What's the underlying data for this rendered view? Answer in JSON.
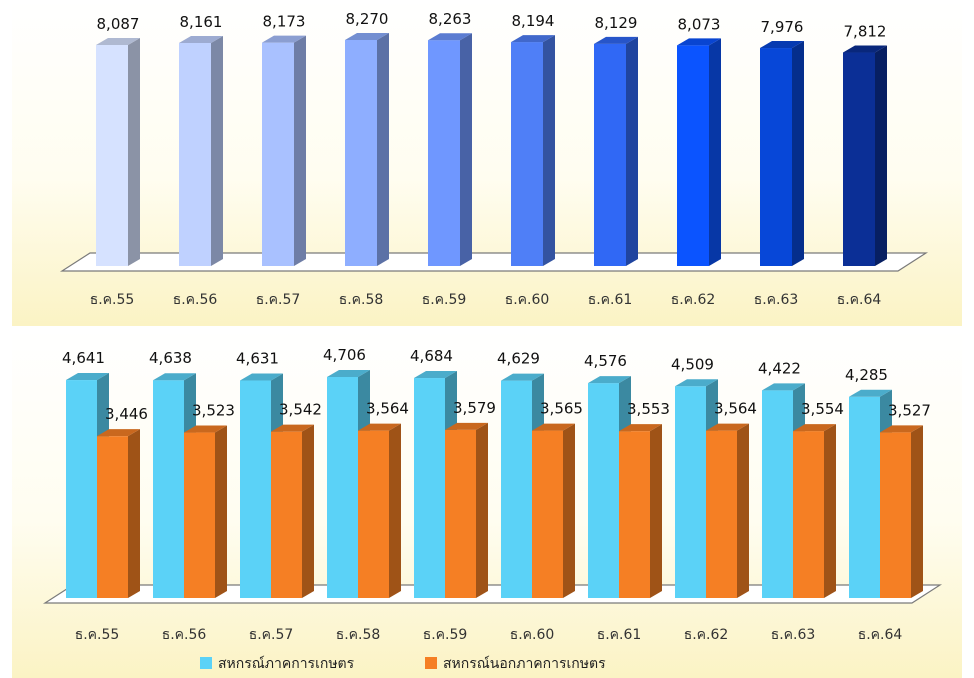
{
  "chart_data": [
    {
      "type": "bar",
      "categories": [
        "ธ.ค.55",
        "ธ.ค.56",
        "ธ.ค.57",
        "ธ.ค.58",
        "ธ.ค.59",
        "ธ.ค.60",
        "ธ.ค.61",
        "ธ.ค.62",
        "ธ.ค.63",
        "ธ.ค.64"
      ],
      "values": [
        8087,
        8161,
        8173,
        8270,
        8263,
        8194,
        8129,
        8073,
        7976,
        7812
      ],
      "value_labels": [
        "8,087",
        "8,161",
        "8,173",
        "8,270",
        "8,263",
        "8,194",
        "8,129",
        "8,073",
        "7,976",
        "7,812"
      ],
      "colors": [
        "#d6e2ff",
        "#bfd1ff",
        "#a9c1ff",
        "#8eaeff",
        "#6f97ff",
        "#4f7ff7",
        "#3068f5",
        "#0b54ff",
        "#0747d8",
        "#0b2f96"
      ],
      "title": "",
      "xlabel": "",
      "ylabel": "",
      "ylim": [
        0,
        8270
      ],
      "grid": false,
      "style": "3d-column",
      "background": "#fdf8d8"
    },
    {
      "type": "bar",
      "categories": [
        "ธ.ค.55",
        "ธ.ค.56",
        "ธ.ค.57",
        "ธ.ค.58",
        "ธ.ค.59",
        "ธ.ค.60",
        "ธ.ค.61",
        "ธ.ค.62",
        "ธ.ค.63",
        "ธ.ค.64"
      ],
      "series": [
        {
          "name": "สหกรณ์ภาคการเกษตร",
          "color": "#5bd2f7",
          "values": [
            4641,
            4638,
            4631,
            4706,
            4684,
            4629,
            4576,
            4509,
            4422,
            4285
          ],
          "value_labels": [
            "4,641",
            "4,638",
            "4,631",
            "4,706",
            "4,684",
            "4,629",
            "4,576",
            "4,509",
            "4,422",
            "4,285"
          ]
        },
        {
          "name": "สหกรณ์นอกภาคการเกษตร",
          "color": "#f57f24",
          "values": [
            3446,
            3523,
            3542,
            3564,
            3579,
            3565,
            3553,
            3564,
            3554,
            3527
          ],
          "value_labels": [
            "3,446",
            "3,523",
            "3,542",
            "3,564",
            "3,579",
            "3,565",
            "3,553",
            "3,564",
            "3,554",
            "3,527"
          ]
        }
      ],
      "title": "",
      "xlabel": "",
      "ylabel": "",
      "ylim": [
        0,
        4706
      ],
      "grid": false,
      "style": "3d-column",
      "legend": "bottom",
      "background": "#fdf8d8"
    }
  ]
}
